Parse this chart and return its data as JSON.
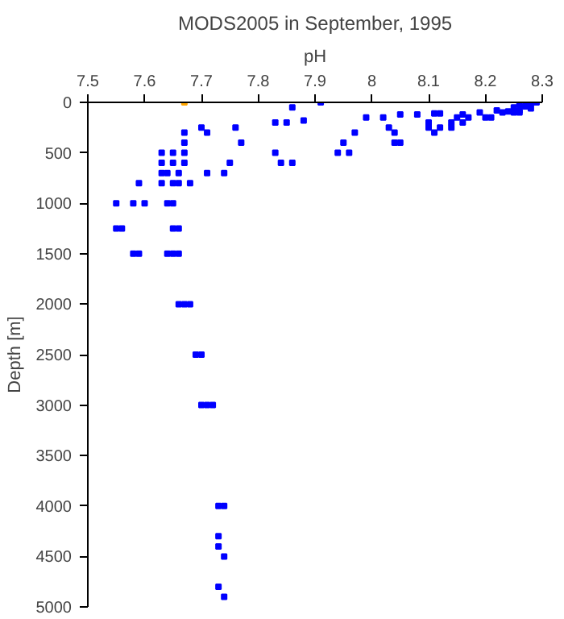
{
  "chart_data": {
    "type": "scatter",
    "title": "MODS2005 in September, 1995",
    "xlabel": "pH",
    "ylabel": "Depth [m]",
    "xlim": [
      7.5,
      8.3
    ],
    "ylim": [
      5000,
      0
    ],
    "xticks": [
      7.5,
      7.6,
      7.7,
      7.8,
      7.9,
      8,
      8.1,
      8.2,
      8.3
    ],
    "yticks": [
      0,
      500,
      1000,
      1500,
      2000,
      2500,
      3000,
      3500,
      4000,
      4500,
      5000
    ],
    "marker": "square",
    "grid": false,
    "series": [
      {
        "color": "#0000ff",
        "x": [
          7.86,
          7.91,
          7.7,
          7.71,
          7.76,
          7.67,
          7.67,
          7.77,
          7.83,
          7.85,
          7.88,
          7.63,
          7.65,
          7.67,
          7.83,
          7.63,
          7.65,
          7.67,
          7.75,
          7.84,
          7.86,
          7.63,
          7.64,
          7.66,
          7.71,
          7.74,
          7.59,
          7.63,
          7.65,
          7.66,
          7.68,
          7.55,
          7.58,
          7.6,
          7.64,
          7.65,
          7.55,
          7.56,
          7.65,
          7.66,
          7.58,
          7.59,
          7.64,
          7.65,
          7.66,
          7.66,
          7.67,
          7.68,
          7.69,
          7.7,
          7.7,
          7.71,
          7.72,
          7.73,
          7.74,
          7.73,
          7.73,
          7.74,
          7.73,
          7.74,
          7.97,
          7.95,
          7.94,
          7.96,
          7.99,
          8.02,
          8.03,
          8.04,
          8.04,
          8.05,
          8.05,
          8.08,
          8.11,
          8.12,
          8.1,
          8.1,
          8.12,
          8.11,
          8.14,
          8.14,
          8.15,
          8.16,
          8.16,
          8.17,
          8.19,
          8.2,
          8.21,
          8.22,
          8.23,
          8.24,
          8.25,
          8.25,
          8.26,
          8.26,
          8.26,
          8.27,
          8.28,
          8.28,
          8.29
        ],
        "values": [
          50,
          0,
          250,
          300,
          250,
          300,
          400,
          400,
          200,
          200,
          180,
          500,
          500,
          500,
          500,
          600,
          600,
          600,
          600,
          600,
          600,
          700,
          700,
          700,
          700,
          700,
          800,
          800,
          800,
          800,
          800,
          1000,
          1000,
          1000,
          1000,
          1000,
          1250,
          1250,
          1250,
          1250,
          1500,
          1500,
          1500,
          1500,
          1500,
          2000,
          2000,
          2000,
          2500,
          2500,
          3000,
          3000,
          3000,
          4000,
          4000,
          4300,
          4400,
          4500,
          4800,
          4900,
          300,
          400,
          500,
          500,
          150,
          150,
          250,
          300,
          400,
          400,
          120,
          120,
          110,
          110,
          200,
          250,
          250,
          300,
          200,
          250,
          150,
          120,
          200,
          150,
          100,
          150,
          150,
          80,
          100,
          90,
          50,
          100,
          20,
          80,
          100,
          40,
          10,
          60,
          0
        ]
      },
      {
        "color": "#ffa500",
        "x": [
          7.67
        ],
        "values": [
          0
        ]
      }
    ]
  }
}
